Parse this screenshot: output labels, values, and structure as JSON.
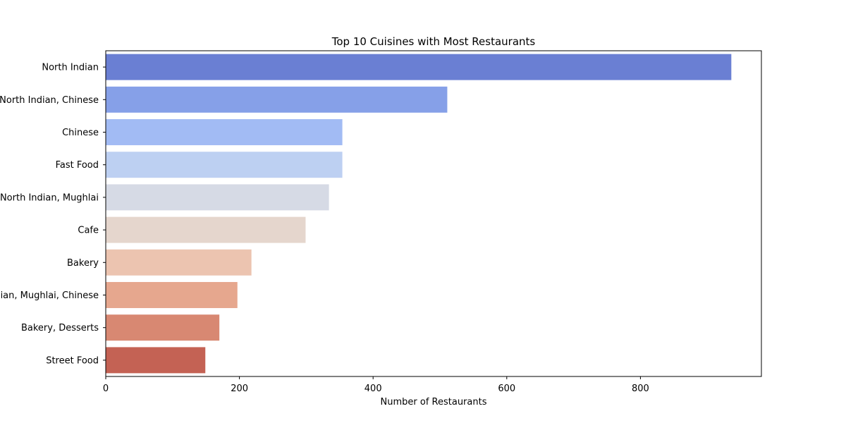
{
  "chart_data": {
    "type": "bar",
    "orientation": "horizontal",
    "title": "Top 10 Cuisines with Most Restaurants",
    "xlabel": "Number of Restaurants",
    "ylabel": "",
    "categories": [
      "North Indian",
      "North Indian, Chinese",
      "Chinese",
      "Fast Food",
      "North Indian, Mughlai",
      "Cafe",
      "Bakery",
      "North Indian, Mughlai, Chinese",
      "Bakery, Desserts",
      "Street Food"
    ],
    "values": [
      936,
      511,
      354,
      354,
      334,
      299,
      218,
      197,
      170,
      149
    ],
    "colors": [
      "#6a7fd3",
      "#86a0e8",
      "#a2bbf4",
      "#bdd0f2",
      "#d6dae5",
      "#e5d6cd",
      "#ecc4b0",
      "#e6a78e",
      "#d88872",
      "#c46254"
    ],
    "xlim": [
      0,
      981
    ],
    "xticks": [
      0,
      200,
      400,
      600,
      800
    ],
    "grid": false,
    "legend": "none"
  }
}
